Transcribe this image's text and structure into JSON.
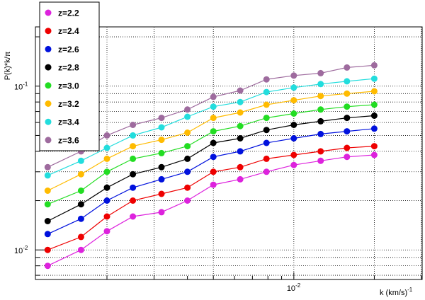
{
  "chart_data": {
    "type": "line",
    "title": "",
    "xlabel": "k  (km/s)",
    "xlabel_exp": "-1",
    "ylabel": "P(k)*k/π",
    "xscale": "log",
    "yscale": "log",
    "xlim": [
      0.00108,
      0.0302
    ],
    "ylim": [
      0.0066,
      0.23
    ],
    "grid": true,
    "legend_position": "top-left",
    "x_tick_labels": [
      {
        "value": 0.01,
        "mantissa": "10",
        "exp": "-2"
      }
    ],
    "y_tick_labels": [
      {
        "value": 0.01,
        "mantissa": "10",
        "exp": "-2"
      },
      {
        "value": 0.1,
        "mantissa": "10",
        "exp": "-1"
      }
    ],
    "x": [
      0.0012,
      0.0016,
      0.002,
      0.0025,
      0.0032,
      0.004,
      0.005,
      0.0063,
      0.0079,
      0.01,
      0.0126,
      0.0158,
      0.02
    ],
    "series": [
      {
        "name": "z=2.2",
        "color": "#dd22dd",
        "values": [
          0.008,
          0.01,
          0.013,
          0.016,
          0.017,
          0.02,
          0.025,
          0.027,
          0.03,
          0.033,
          0.035,
          0.037,
          0.038
        ]
      },
      {
        "name": "z=2.4",
        "color": "#ee0000",
        "values": [
          0.01,
          0.012,
          0.016,
          0.02,
          0.022,
          0.024,
          0.03,
          0.032,
          0.036,
          0.038,
          0.04,
          0.042,
          0.043
        ]
      },
      {
        "name": "z=2.6",
        "color": "#0011dd",
        "values": [
          0.0125,
          0.0155,
          0.02,
          0.024,
          0.027,
          0.03,
          0.037,
          0.04,
          0.045,
          0.048,
          0.051,
          0.053,
          0.055
        ]
      },
      {
        "name": "z=2.8",
        "color": "#000000",
        "values": [
          0.015,
          0.019,
          0.024,
          0.029,
          0.032,
          0.036,
          0.045,
          0.048,
          0.054,
          0.058,
          0.061,
          0.064,
          0.066
        ]
      },
      {
        "name": "z=3.0",
        "color": "#22dd22",
        "values": [
          0.019,
          0.023,
          0.03,
          0.036,
          0.039,
          0.043,
          0.053,
          0.057,
          0.064,
          0.068,
          0.072,
          0.075,
          0.077
        ]
      },
      {
        "name": "z=3.2",
        "color": "#ffbb00",
        "values": [
          0.023,
          0.029,
          0.036,
          0.043,
          0.047,
          0.052,
          0.064,
          0.069,
          0.077,
          0.082,
          0.087,
          0.09,
          0.093
        ]
      },
      {
        "name": "z=3.4",
        "color": "#22dddd",
        "values": [
          0.0285,
          0.035,
          0.042,
          0.05,
          0.056,
          0.065,
          0.075,
          0.08,
          0.092,
          0.098,
          0.103,
          0.107,
          0.111
        ]
      },
      {
        "name": "z=3.6",
        "color": "#9e6b9e",
        "values": [
          0.032,
          0.04,
          0.05,
          0.058,
          0.064,
          0.072,
          0.086,
          0.094,
          0.11,
          0.116,
          0.12,
          0.13,
          0.134
        ]
      }
    ]
  }
}
